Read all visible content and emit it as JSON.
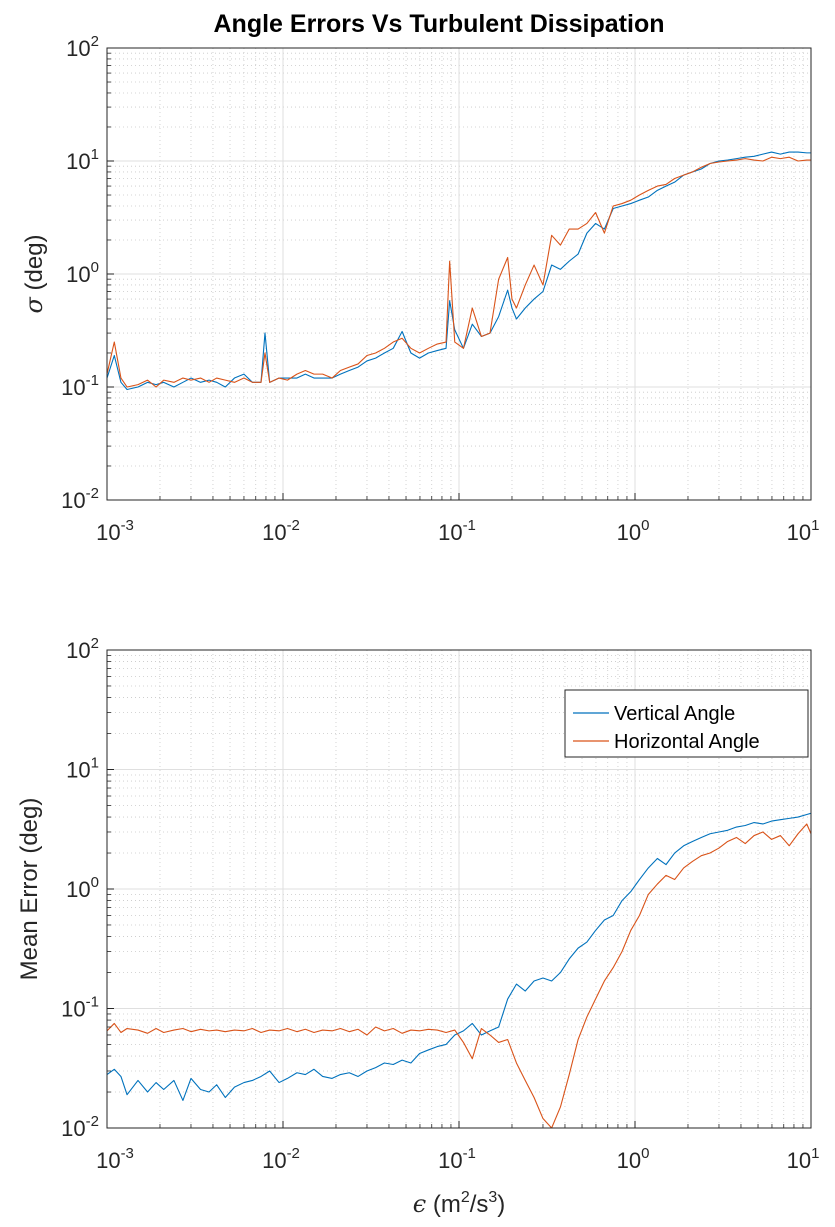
{
  "figure": {
    "title": "Angle Errors Vs Turbulent Dissipation"
  },
  "colors": {
    "vertical": "#0072bd",
    "horizontal": "#d95319",
    "axis": "#262626",
    "grid_major": "#dfdfdf",
    "grid_minor": "#c8c8c8"
  },
  "chart_data": [
    {
      "type": "line",
      "title": "Angle Errors Vs Turbulent Dissipation",
      "xlabel": "ε (m²/s³)",
      "ylabel_symbol": "σ",
      "ylabel_rest": " (deg)",
      "xscale": "log",
      "yscale": "log",
      "xlim": [
        0.001,
        10
      ],
      "ylim": [
        0.01,
        100
      ],
      "grid": "on (major and minor)",
      "xticks": [
        {
          "base": "10",
          "exp": "-3"
        },
        {
          "base": "10",
          "exp": "-2"
        },
        {
          "base": "10",
          "exp": "-1"
        },
        {
          "base": "10",
          "exp": "0"
        },
        {
          "base": "10",
          "exp": "1"
        }
      ],
      "yticks": [
        {
          "base": "10",
          "exp": "-2"
        },
        {
          "base": "10",
          "exp": "-1"
        },
        {
          "base": "10",
          "exp": "0"
        },
        {
          "base": "10",
          "exp": "1"
        },
        {
          "base": "10",
          "exp": "2"
        }
      ],
      "x": [
        0.001,
        0.0011,
        0.0012,
        0.0013,
        0.0015,
        0.0017,
        0.0019,
        0.0021,
        0.0024,
        0.0027,
        0.003,
        0.0034,
        0.0038,
        0.0042,
        0.0047,
        0.0053,
        0.006,
        0.0067,
        0.0075,
        0.0079,
        0.0084,
        0.0095,
        0.0106,
        0.012,
        0.0134,
        0.015,
        0.0168,
        0.019,
        0.0212,
        0.0238,
        0.0267,
        0.03,
        0.0336,
        0.0377,
        0.0423,
        0.0475,
        0.0533,
        0.0597,
        0.067,
        0.0752,
        0.0844,
        0.0885,
        0.0946,
        0.106,
        0.119,
        0.134,
        0.15,
        0.168,
        0.189,
        0.2,
        0.212,
        0.238,
        0.267,
        0.3,
        0.336,
        0.377,
        0.423,
        0.475,
        0.533,
        0.597,
        0.67,
        0.752,
        0.844,
        0.946,
        1.06,
        1.19,
        1.34,
        1.5,
        1.68,
        1.89,
        2.12,
        2.38,
        2.67,
        3.0,
        3.36,
        3.77,
        4.23,
        4.75,
        5.33,
        5.97,
        6.7,
        7.52,
        8.44,
        9.46,
        10.0
      ],
      "series": [
        {
          "name": "Vertical Angle",
          "values": [
            0.12,
            0.19,
            0.11,
            0.095,
            0.1,
            0.11,
            0.105,
            0.11,
            0.1,
            0.11,
            0.12,
            0.11,
            0.115,
            0.11,
            0.1,
            0.12,
            0.13,
            0.11,
            0.11,
            0.3,
            0.11,
            0.12,
            0.12,
            0.12,
            0.13,
            0.12,
            0.12,
            0.12,
            0.13,
            0.14,
            0.15,
            0.17,
            0.18,
            0.2,
            0.22,
            0.31,
            0.2,
            0.18,
            0.2,
            0.21,
            0.22,
            0.58,
            0.32,
            0.22,
            0.36,
            0.28,
            0.3,
            0.42,
            0.72,
            0.5,
            0.4,
            0.5,
            0.6,
            0.7,
            1.2,
            1.1,
            1.3,
            1.5,
            2.3,
            2.8,
            2.5,
            3.8,
            4.0,
            4.2,
            4.5,
            4.8,
            5.5,
            6.0,
            6.5,
            7.5,
            8.0,
            8.5,
            9.5,
            10.0,
            10.2,
            10.5,
            10.8,
            11.0,
            11.5,
            12.0,
            11.5,
            12.0,
            12.0,
            11.8,
            11.8
          ]
        },
        {
          "name": "Horizontal Angle",
          "values": [
            0.13,
            0.25,
            0.12,
            0.1,
            0.105,
            0.115,
            0.1,
            0.115,
            0.11,
            0.12,
            0.115,
            0.12,
            0.11,
            0.12,
            0.115,
            0.11,
            0.12,
            0.11,
            0.11,
            0.2,
            0.11,
            0.12,
            0.115,
            0.13,
            0.14,
            0.13,
            0.13,
            0.12,
            0.14,
            0.15,
            0.16,
            0.19,
            0.2,
            0.22,
            0.25,
            0.27,
            0.22,
            0.2,
            0.22,
            0.24,
            0.25,
            1.3,
            0.25,
            0.22,
            0.5,
            0.28,
            0.3,
            0.9,
            1.4,
            0.6,
            0.5,
            0.8,
            1.2,
            0.8,
            2.2,
            1.8,
            2.5,
            2.5,
            2.8,
            3.5,
            2.3,
            4.0,
            4.2,
            4.5,
            5.0,
            5.5,
            6.0,
            6.2,
            7.0,
            7.5,
            8.0,
            8.8,
            9.5,
            9.8,
            10.0,
            10.2,
            10.5,
            10.2,
            10.0,
            10.8,
            10.5,
            10.8,
            10.0,
            10.2,
            10.2
          ]
        }
      ]
    },
    {
      "type": "line",
      "title": "",
      "xlabel": "ε (m²/s³)",
      "ylabel": "Mean Error (deg)",
      "xscale": "log",
      "yscale": "log",
      "xlim": [
        0.001,
        10
      ],
      "ylim": [
        0.01,
        100
      ],
      "grid": "on (major and minor)",
      "legend": "top-right",
      "xticks": [
        {
          "base": "10",
          "exp": "-3"
        },
        {
          "base": "10",
          "exp": "-2"
        },
        {
          "base": "10",
          "exp": "-1"
        },
        {
          "base": "10",
          "exp": "0"
        },
        {
          "base": "10",
          "exp": "1"
        }
      ],
      "yticks": [
        {
          "base": "10",
          "exp": "-2"
        },
        {
          "base": "10",
          "exp": "-1"
        },
        {
          "base": "10",
          "exp": "0"
        },
        {
          "base": "10",
          "exp": "1"
        },
        {
          "base": "10",
          "exp": "2"
        }
      ],
      "x": [
        0.001,
        0.0011,
        0.0012,
        0.0013,
        0.0015,
        0.0017,
        0.0019,
        0.0021,
        0.0024,
        0.0027,
        0.003,
        0.0034,
        0.0038,
        0.0042,
        0.0047,
        0.0053,
        0.006,
        0.0067,
        0.0075,
        0.0084,
        0.0095,
        0.0106,
        0.012,
        0.0134,
        0.015,
        0.0168,
        0.019,
        0.0212,
        0.0238,
        0.0267,
        0.03,
        0.0336,
        0.0377,
        0.0423,
        0.0475,
        0.0533,
        0.0597,
        0.067,
        0.0752,
        0.0844,
        0.0946,
        0.106,
        0.119,
        0.134,
        0.15,
        0.168,
        0.189,
        0.212,
        0.238,
        0.267,
        0.3,
        0.336,
        0.377,
        0.423,
        0.475,
        0.533,
        0.597,
        0.67,
        0.752,
        0.844,
        0.946,
        1.06,
        1.19,
        1.34,
        1.5,
        1.68,
        1.89,
        2.12,
        2.38,
        2.67,
        3.0,
        3.36,
        3.77,
        4.23,
        4.75,
        5.33,
        5.97,
        6.7,
        7.52,
        8.44,
        9.46,
        10.0
      ],
      "series": [
        {
          "name": "Vertical Angle",
          "values": [
            0.028,
            0.031,
            0.027,
            0.019,
            0.025,
            0.02,
            0.024,
            0.021,
            0.025,
            0.017,
            0.026,
            0.021,
            0.02,
            0.023,
            0.018,
            0.022,
            0.024,
            0.025,
            0.027,
            0.03,
            0.024,
            0.026,
            0.029,
            0.028,
            0.031,
            0.027,
            0.026,
            0.028,
            0.029,
            0.027,
            0.03,
            0.032,
            0.035,
            0.034,
            0.037,
            0.035,
            0.042,
            0.045,
            0.048,
            0.05,
            0.06,
            0.065,
            0.075,
            0.06,
            0.065,
            0.07,
            0.12,
            0.16,
            0.14,
            0.17,
            0.18,
            0.17,
            0.2,
            0.26,
            0.32,
            0.36,
            0.45,
            0.55,
            0.6,
            0.8,
            0.95,
            1.2,
            1.5,
            1.8,
            1.6,
            2.0,
            2.3,
            2.5,
            2.7,
            2.9,
            3.0,
            3.1,
            3.3,
            3.4,
            3.6,
            3.5,
            3.7,
            3.8,
            3.9,
            4.0,
            4.2,
            4.3
          ]
        },
        {
          "name": "Horizontal Angle",
          "values": [
            0.065,
            0.075,
            0.063,
            0.068,
            0.066,
            0.062,
            0.068,
            0.063,
            0.066,
            0.068,
            0.064,
            0.067,
            0.065,
            0.066,
            0.064,
            0.066,
            0.065,
            0.068,
            0.063,
            0.066,
            0.065,
            0.068,
            0.064,
            0.067,
            0.063,
            0.066,
            0.065,
            0.068,
            0.064,
            0.067,
            0.06,
            0.07,
            0.065,
            0.068,
            0.062,
            0.066,
            0.065,
            0.067,
            0.066,
            0.063,
            0.066,
            0.052,
            0.038,
            0.068,
            0.06,
            0.052,
            0.055,
            0.035,
            0.025,
            0.018,
            0.012,
            0.01,
            0.015,
            0.028,
            0.055,
            0.085,
            0.12,
            0.17,
            0.22,
            0.3,
            0.45,
            0.6,
            0.9,
            1.1,
            1.3,
            1.2,
            1.5,
            1.7,
            1.9,
            2.0,
            2.2,
            2.5,
            2.7,
            2.4,
            2.8,
            3.0,
            2.6,
            2.8,
            2.3,
            2.9,
            3.5,
            2.9
          ]
        }
      ]
    }
  ]
}
